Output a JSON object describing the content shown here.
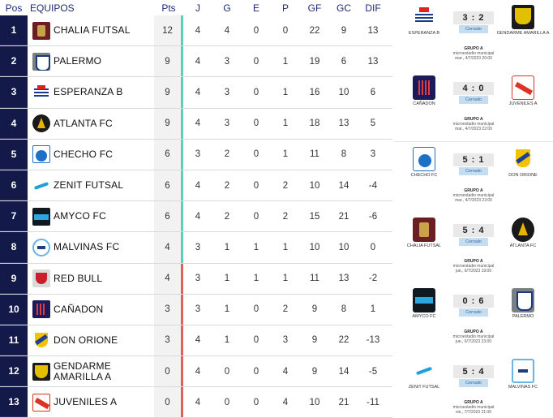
{
  "header": {
    "pos": "Pos",
    "team": "EQUIPOS",
    "pts": "Pts",
    "j": "J",
    "g": "G",
    "e": "E",
    "p": "P",
    "gf": "GF",
    "gc": "GC",
    "dif": "DIF"
  },
  "standings": [
    {
      "pos": "1",
      "team": "CHALIA FUTSAL",
      "team2": "",
      "logo": "chalia",
      "pts": "12",
      "j": "4",
      "g": "4",
      "e": "0",
      "p": "0",
      "gf": "22",
      "gc": "9",
      "dif": "13",
      "zone": "green"
    },
    {
      "pos": "2",
      "team": "PALERMO",
      "team2": "",
      "logo": "palermo",
      "pts": "9",
      "j": "4",
      "g": "3",
      "e": "0",
      "p": "1",
      "gf": "19",
      "gc": "6",
      "dif": "13",
      "zone": "green"
    },
    {
      "pos": "3",
      "team": "ESPERANZA B",
      "team2": "",
      "logo": "esperanza",
      "pts": "9",
      "j": "4",
      "g": "3",
      "e": "0",
      "p": "1",
      "gf": "16",
      "gc": "10",
      "dif": "6",
      "zone": "green"
    },
    {
      "pos": "4",
      "team": "ATLANTA FC",
      "team2": "",
      "logo": "atlanta",
      "pts": "9",
      "j": "4",
      "g": "3",
      "e": "0",
      "p": "1",
      "gf": "18",
      "gc": "13",
      "dif": "5",
      "zone": "green"
    },
    {
      "pos": "5",
      "team": "CHECHO FC",
      "team2": "",
      "logo": "checho",
      "pts": "6",
      "j": "3",
      "g": "2",
      "e": "0",
      "p": "1",
      "gf": "11",
      "gc": "8",
      "dif": "3",
      "zone": "green"
    },
    {
      "pos": "6",
      "team": "ZENIT FUTSAL",
      "team2": "",
      "logo": "zenit",
      "pts": "6",
      "j": "4",
      "g": "2",
      "e": "0",
      "p": "2",
      "gf": "10",
      "gc": "14",
      "dif": "-4",
      "zone": "green"
    },
    {
      "pos": "7",
      "team": "AMYCO FC",
      "team2": "",
      "logo": "amyco",
      "pts": "6",
      "j": "4",
      "g": "2",
      "e": "0",
      "p": "2",
      "gf": "15",
      "gc": "21",
      "dif": "-6",
      "zone": "green"
    },
    {
      "pos": "8",
      "team": "MALVINAS FC",
      "team2": "",
      "logo": "malvinas",
      "pts": "4",
      "j": "3",
      "g": "1",
      "e": "1",
      "p": "1",
      "gf": "10",
      "gc": "10",
      "dif": "0",
      "zone": "green"
    },
    {
      "pos": "9",
      "team": "RED BULL",
      "team2": "",
      "logo": "redbull",
      "pts": "4",
      "j": "3",
      "g": "1",
      "e": "1",
      "p": "1",
      "gf": "11",
      "gc": "13",
      "dif": "-2",
      "zone": "red"
    },
    {
      "pos": "10",
      "team": "CAÑADON",
      "team2": "",
      "logo": "canadon",
      "pts": "3",
      "j": "3",
      "g": "1",
      "e": "0",
      "p": "2",
      "gf": "9",
      "gc": "8",
      "dif": "1",
      "zone": "red"
    },
    {
      "pos": "11",
      "team": "DON ORIONE",
      "team2": "",
      "logo": "donorione",
      "pts": "3",
      "j": "4",
      "g": "1",
      "e": "0",
      "p": "3",
      "gf": "9",
      "gc": "22",
      "dif": "-13",
      "zone": "red"
    },
    {
      "pos": "12",
      "team": "GENDARME",
      "team2": "AMARILLA  A",
      "logo": "gendarme",
      "pts": "0",
      "j": "4",
      "g": "0",
      "e": "0",
      "p": "4",
      "gf": "9",
      "gc": "14",
      "dif": "-5",
      "zone": "red"
    },
    {
      "pos": "13",
      "team": "JUVENILES  A",
      "team2": "",
      "logo": "juveniles",
      "pts": "0",
      "j": "4",
      "g": "0",
      "e": "0",
      "p": "4",
      "gf": "10",
      "gc": "21",
      "dif": "-11",
      "zone": "red"
    }
  ],
  "matches": [
    {
      "home": "ESPERANZA B",
      "home_logo": "esperanza",
      "away": "GENDARME AMARILLA  A",
      "away_logo": "gendarme",
      "score": "3 : 2",
      "status": "Cerrado",
      "group": "GRUPO A",
      "venue": "microestadio municipal",
      "date": "mar., 4/7/2023 20:00"
    },
    {
      "home": "CAÑADON",
      "home_logo": "canadon",
      "away": "JUVENILES  A",
      "away_logo": "juveniles",
      "score": "4 : 0",
      "status": "Cerrado",
      "group": "GRUPO A",
      "venue": "microestadio municipal",
      "date": "mar., 4/7/2023 22:00"
    },
    {
      "home": "CHECHO FC",
      "home_logo": "checho",
      "away": "DON ORIONE",
      "away_logo": "donorione",
      "score": "5 : 1",
      "status": "Cerrado",
      "group": "GRUPO A",
      "venue": "microestadio municipal",
      "date": "mar., 4/7/2023 23:00"
    },
    {
      "home": "CHALIA FUTSAL",
      "home_logo": "chalia",
      "away": "ATLANTA FC",
      "away_logo": "atlanta",
      "score": "5 : 4",
      "status": "Cerrado",
      "group": "GRUPO A",
      "venue": "microestadio municipal",
      "date": "jue., 6/7/2023 19:00"
    },
    {
      "home": "AMYCO FC",
      "home_logo": "amyco",
      "away": "PALERMO",
      "away_logo": "palermo",
      "score": "0 : 6",
      "status": "Cerrado",
      "group": "GRUPO A",
      "venue": "microestadio municipal",
      "date": "jue., 6/7/2023 23:00"
    },
    {
      "home": "ZENIT FUTSAL",
      "home_logo": "zenit",
      "away": "MALVINAS FC",
      "away_logo": "malvinas",
      "score": "5 : 4",
      "status": "Cerrado",
      "group": "GRUPO A",
      "venue": "microestadio municipal",
      "date": "vie., 7/7/2023 21:00"
    }
  ],
  "colors": {
    "pos_bg": "#131a4a",
    "zone_green": "#5ed0b6",
    "zone_red": "#e0605e",
    "status_bg": "#c6ddf0"
  }
}
